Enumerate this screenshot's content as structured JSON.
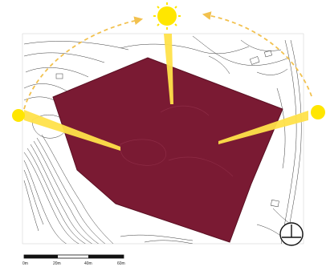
{
  "scale_bar": {
    "labels": [
      "0m",
      "20m",
      "40m",
      "60m"
    ]
  },
  "north_arrow": {
    "icon": "north-arrow-icon"
  },
  "sun_markers": [
    {
      "icon": "sun-icon",
      "position_word": "left"
    },
    {
      "icon": "sun-icon",
      "position_word": "top"
    },
    {
      "icon": "sun-icon",
      "position_word": "right"
    }
  ],
  "colors": {
    "site_fill": "#7a1a33",
    "site_stroke": "#5a0f22",
    "sun": "#ffe600",
    "sun_ray": "#ffe24a",
    "sun_path": "#f2c14e",
    "contour": "#3a3a3a"
  }
}
